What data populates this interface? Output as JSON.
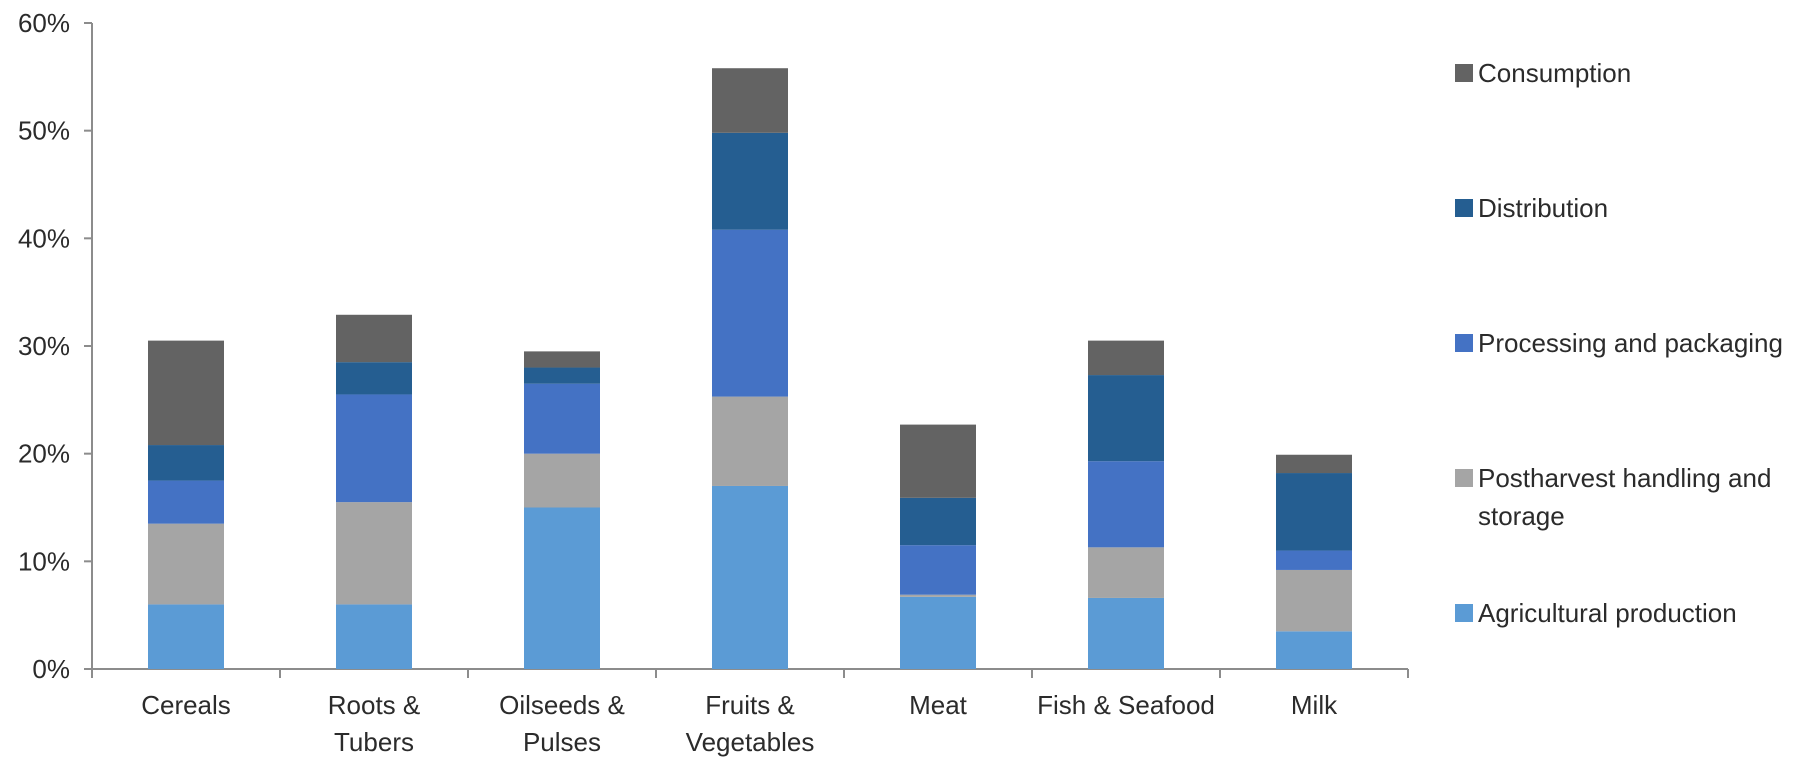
{
  "chart_data": {
    "type": "bar",
    "stacked": true,
    "title": "",
    "xlabel": "",
    "ylabel": "",
    "ylim": [
      0,
      0.6
    ],
    "y_ticks": [
      0,
      0.1,
      0.2,
      0.3,
      0.4,
      0.5,
      0.6
    ],
    "y_tick_labels": [
      "0%",
      "10%",
      "20%",
      "30%",
      "40%",
      "50%",
      "60%"
    ],
    "grid": false,
    "legend_position": "right",
    "categories": [
      "Cereals",
      "Roots & Tubers",
      "Oilseeds & Pulses",
      "Fruits & Vegetables",
      "Meat",
      "Fish & Seafood",
      "Milk"
    ],
    "category_label_lines": [
      [
        "Cereals"
      ],
      [
        "Roots &",
        "Tubers"
      ],
      [
        "Oilseeds &",
        "Pulses"
      ],
      [
        "Fruits &",
        "Vegetables"
      ],
      [
        "Meat"
      ],
      [
        "Fish & Seafood"
      ],
      [
        "Milk"
      ]
    ],
    "series": [
      {
        "name": "Agricultural production",
        "color": "#5b9bd5",
        "values": [
          0.06,
          0.06,
          0.15,
          0.17,
          0.067,
          0.066,
          0.035
        ]
      },
      {
        "name": "Postharvest handling and storage",
        "color": "#a5a5a5",
        "values": [
          0.075,
          0.095,
          0.05,
          0.083,
          0.002,
          0.047,
          0.057
        ]
      },
      {
        "name": "Processing and packaging",
        "color": "#4472c4",
        "values": [
          0.04,
          0.1,
          0.065,
          0.155,
          0.046,
          0.08,
          0.018
        ]
      },
      {
        "name": "Distribution",
        "color": "#255e91",
        "values": [
          0.033,
          0.03,
          0.015,
          0.09,
          0.044,
          0.08,
          0.072
        ]
      },
      {
        "name": "Consumption",
        "color": "#636363",
        "values": [
          0.097,
          0.044,
          0.015,
          0.06,
          0.068,
          0.032,
          0.017
        ]
      }
    ],
    "legend_order": [
      "Consumption",
      "Distribution",
      "Processing and packaging",
      "Postharvest handling and storage",
      "Agricultural production"
    ],
    "legend_label_lines": {
      "Consumption": [
        "Consumption"
      ],
      "Distribution": [
        "Distribution"
      ],
      "Processing and packaging": [
        "Processing and packaging"
      ],
      "Postharvest handling and storage": [
        "Postharvest handling and",
        "storage"
      ],
      "Agricultural production": [
        "Agricultural production"
      ]
    }
  }
}
